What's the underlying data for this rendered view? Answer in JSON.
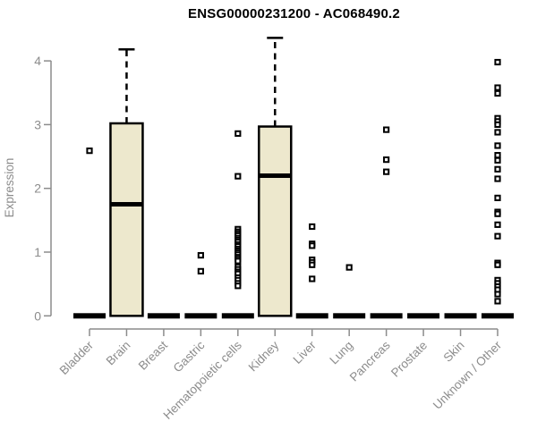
{
  "chart_data": {
    "type": "boxplot",
    "title": "ENSG00000231200 - AC068490.2",
    "ylabel": "Expression",
    "yticks": [
      0,
      1,
      2,
      3,
      4
    ],
    "ylim": [
      0,
      4.4
    ],
    "grid": false,
    "legend_position": "none",
    "categories": [
      "Bladder",
      "Brain",
      "Breast",
      "Gastric",
      "Hematopoietic cells",
      "Kidney",
      "Liver",
      "Lung",
      "Pancreas",
      "Prostate",
      "Skin",
      "Unknown / Other"
    ],
    "boxes": [
      {
        "category": "Bladder",
        "q1": 0,
        "median": 0,
        "q3": 0,
        "whisker_low": 0,
        "whisker_high": 0,
        "outliers": [
          2.59
        ]
      },
      {
        "category": "Brain",
        "q1": 0,
        "median": 1.75,
        "q3": 3.02,
        "whisker_low": 0,
        "whisker_high": 4.18,
        "outliers": []
      },
      {
        "category": "Breast",
        "q1": 0,
        "median": 0,
        "q3": 0,
        "whisker_low": 0,
        "whisker_high": 0,
        "outliers": []
      },
      {
        "category": "Gastric",
        "q1": 0,
        "median": 0,
        "q3": 0,
        "whisker_low": 0,
        "whisker_high": 0,
        "outliers": [
          0.95,
          0.7
        ]
      },
      {
        "category": "Hematopoietic cells",
        "q1": 0,
        "median": 0,
        "q3": 0,
        "whisker_low": 0,
        "whisker_high": 0,
        "outliers": [
          2.86,
          2.19,
          1.36,
          1.32,
          1.29,
          1.26,
          1.22,
          1.19,
          1.16,
          1.12,
          1.09,
          1.05,
          1.02,
          0.99,
          0.96,
          0.92,
          0.89,
          0.86,
          0.77,
          0.73,
          0.69,
          0.66,
          0.6,
          0.56,
          0.51,
          0.47
        ]
      },
      {
        "category": "Kidney",
        "q1": 0,
        "median": 2.2,
        "q3": 2.97,
        "whisker_low": 0,
        "whisker_high": 4.36,
        "outliers": []
      },
      {
        "category": "Liver",
        "q1": 0,
        "median": 0,
        "q3": 0,
        "whisker_low": 0,
        "whisker_high": 0,
        "outliers": [
          1.4,
          1.13,
          1.1,
          0.88,
          0.84,
          0.8,
          0.58
        ]
      },
      {
        "category": "Lung",
        "q1": 0,
        "median": 0,
        "q3": 0,
        "whisker_low": 0,
        "whisker_high": 0,
        "outliers": [
          0.76
        ]
      },
      {
        "category": "Pancreas",
        "q1": 0,
        "median": 0,
        "q3": 0,
        "whisker_low": 0,
        "whisker_high": 0,
        "outliers": [
          2.92,
          2.45,
          2.26
        ]
      },
      {
        "category": "Prostate",
        "q1": 0,
        "median": 0,
        "q3": 0,
        "whisker_low": 0,
        "whisker_high": 0,
        "outliers": []
      },
      {
        "category": "Skin",
        "q1": 0,
        "median": 0,
        "q3": 0,
        "whisker_low": 0,
        "whisker_high": 0,
        "outliers": []
      },
      {
        "category": "Unknown / Other",
        "q1": 0,
        "median": 0,
        "q3": 0,
        "whisker_low": 0,
        "whisker_high": 0,
        "outliers": [
          3.98,
          3.58,
          3.49,
          3.1,
          3.05,
          3.0,
          2.88,
          2.67,
          2.52,
          2.44,
          2.3,
          2.15,
          1.85,
          1.63,
          1.6,
          1.43,
          1.25,
          0.83,
          0.8,
          0.56,
          0.51,
          0.46,
          0.41,
          0.34,
          0.23
        ]
      }
    ],
    "style": {
      "box_fill": "#EDE8CD",
      "box_stroke": "#000000",
      "median_color": "#000000",
      "whisker_style": "dashed",
      "outlier_marker": "open-square",
      "axis_color": "#8C8C8C",
      "title_color": "#000000",
      "background": "#FFFFFF"
    }
  }
}
